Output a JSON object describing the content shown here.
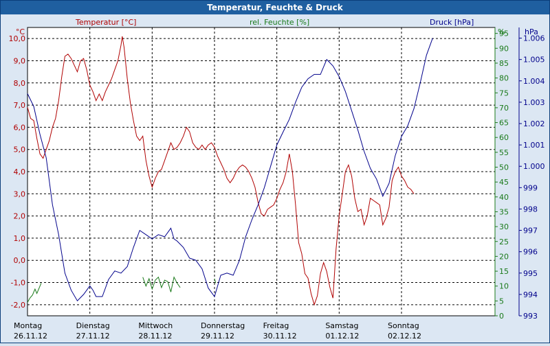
{
  "title": "Temperatur, Feuchte & Druck",
  "colors": {
    "temperature": "#b00000",
    "humidity": "#1a7a1a",
    "pressure": "#00008b",
    "grid": "#000000",
    "background": "#dce7f3",
    "titlebar": "#1f5fa0"
  },
  "chart_data": {
    "type": "line",
    "title": "Temperatur, Feuchte & Druck",
    "x_categories": [
      {
        "day": "Montag",
        "date": "26.11.12"
      },
      {
        "day": "Dienstag",
        "date": "27.11.12"
      },
      {
        "day": "Mittwoch",
        "date": "28.11.12"
      },
      {
        "day": "Donnerstag",
        "date": "29.11.12"
      },
      {
        "day": "Freitag",
        "date": "30.11.12"
      },
      {
        "day": "Samstag",
        "date": "01.12.12"
      },
      {
        "day": "Sonntag",
        "date": "02.12.12"
      }
    ],
    "x_range_days": [
      0,
      7.5
    ],
    "axes": {
      "temperature": {
        "unit_label": "°C",
        "legend": "Temperatur [°C]",
        "min": -2.5,
        "max": 10.5,
        "ticks": [
          "10,0",
          "9,0",
          "8,0",
          "7,0",
          "6,0",
          "5,0",
          "4,0",
          "3,0",
          "2,0",
          "1,0",
          "0,0",
          "-1,0",
          "-2,0"
        ]
      },
      "humidity": {
        "unit_label": "%",
        "legend": "rel. Feuchte [%]",
        "min": 0,
        "max": 97,
        "ticks": [
          "95",
          "90",
          "85",
          "80",
          "75",
          "70",
          "65",
          "60",
          "55",
          "50",
          "45",
          "40",
          "35",
          "30",
          "25",
          "20",
          "15",
          "10",
          "5",
          "0"
        ]
      },
      "pressure": {
        "unit_label": "hPa",
        "legend": "Druck [hPa]",
        "min": 993,
        "max": 1006.5,
        "ticks": [
          "1.006",
          "1.005",
          "1.004",
          "1.003",
          "1.002",
          "1.001",
          "1.000",
          "999",
          "998",
          "997",
          "996",
          "995",
          "994",
          "993"
        ]
      }
    },
    "series": [
      {
        "name": "Temperatur [°C]",
        "axis": "temperature",
        "points": [
          [
            0,
            6.9
          ],
          [
            0.05,
            6.4
          ],
          [
            0.1,
            6.3
          ],
          [
            0.15,
            5.5
          ],
          [
            0.2,
            4.8
          ],
          [
            0.25,
            4.6
          ],
          [
            0.3,
            5.0
          ],
          [
            0.35,
            5.4
          ],
          [
            0.4,
            6.0
          ],
          [
            0.45,
            6.4
          ],
          [
            0.5,
            7.2
          ],
          [
            0.55,
            8.3
          ],
          [
            0.6,
            9.2
          ],
          [
            0.65,
            9.3
          ],
          [
            0.7,
            9.1
          ],
          [
            0.75,
            8.8
          ],
          [
            0.8,
            8.5
          ],
          [
            0.85,
            9.0
          ],
          [
            0.9,
            9.1
          ],
          [
            0.95,
            8.6
          ],
          [
            1.0,
            7.9
          ],
          [
            1.05,
            7.6
          ],
          [
            1.1,
            7.2
          ],
          [
            1.15,
            7.5
          ],
          [
            1.2,
            7.2
          ],
          [
            1.25,
            7.6
          ],
          [
            1.3,
            7.9
          ],
          [
            1.35,
            8.2
          ],
          [
            1.4,
            8.6
          ],
          [
            1.45,
            9.0
          ],
          [
            1.5,
            9.7
          ],
          [
            1.52,
            10.1
          ],
          [
            1.55,
            9.6
          ],
          [
            1.6,
            8.2
          ],
          [
            1.65,
            7.1
          ],
          [
            1.7,
            6.3
          ],
          [
            1.75,
            5.6
          ],
          [
            1.8,
            5.4
          ],
          [
            1.85,
            5.6
          ],
          [
            1.9,
            4.5
          ],
          [
            1.95,
            3.8
          ],
          [
            2.0,
            3.3
          ],
          [
            2.05,
            3.7
          ],
          [
            2.1,
            4.0
          ],
          [
            2.15,
            4.1
          ],
          [
            2.2,
            4.5
          ],
          [
            2.25,
            4.9
          ],
          [
            2.3,
            5.3
          ],
          [
            2.35,
            5.0
          ],
          [
            2.4,
            5.1
          ],
          [
            2.45,
            5.3
          ],
          [
            2.5,
            5.6
          ],
          [
            2.55,
            6.0
          ],
          [
            2.6,
            5.8
          ],
          [
            2.65,
            5.3
          ],
          [
            2.7,
            5.1
          ],
          [
            2.75,
            5.0
          ],
          [
            2.8,
            5.2
          ],
          [
            2.85,
            5.0
          ],
          [
            2.9,
            5.2
          ],
          [
            2.95,
            5.3
          ],
          [
            3.0,
            5.1
          ],
          [
            3.05,
            4.7
          ],
          [
            3.1,
            4.4
          ],
          [
            3.15,
            4.1
          ],
          [
            3.2,
            3.7
          ],
          [
            3.25,
            3.5
          ],
          [
            3.3,
            3.7
          ],
          [
            3.35,
            4.0
          ],
          [
            3.4,
            4.2
          ],
          [
            3.45,
            4.3
          ],
          [
            3.5,
            4.2
          ],
          [
            3.55,
            4.0
          ],
          [
            3.6,
            3.7
          ],
          [
            3.65,
            3.3
          ],
          [
            3.7,
            2.6
          ],
          [
            3.75,
            2.1
          ],
          [
            3.8,
            2.0
          ],
          [
            3.85,
            2.3
          ],
          [
            3.9,
            2.4
          ],
          [
            3.95,
            2.5
          ],
          [
            4.0,
            2.8
          ],
          [
            4.05,
            3.2
          ],
          [
            4.1,
            3.5
          ],
          [
            4.15,
            4.0
          ],
          [
            4.2,
            4.8
          ],
          [
            4.25,
            4.0
          ],
          [
            4.3,
            2.5
          ],
          [
            4.35,
            0.8
          ],
          [
            4.4,
            0.3
          ],
          [
            4.45,
            -0.6
          ],
          [
            4.5,
            -0.8
          ],
          [
            4.55,
            -1.5
          ],
          [
            4.6,
            -2.0
          ],
          [
            4.65,
            -1.6
          ],
          [
            4.7,
            -0.6
          ],
          [
            4.75,
            -0.1
          ],
          [
            4.8,
            -0.5
          ],
          [
            4.85,
            -1.2
          ],
          [
            4.9,
            -1.7
          ],
          [
            4.95,
            0.5
          ],
          [
            5.0,
            2.0
          ],
          [
            5.05,
            3.0
          ],
          [
            5.1,
            4.0
          ],
          [
            5.15,
            4.3
          ],
          [
            5.2,
            3.8
          ],
          [
            5.25,
            2.8
          ],
          [
            5.3,
            2.2
          ],
          [
            5.35,
            2.3
          ],
          [
            5.4,
            1.6
          ],
          [
            5.45,
            2.0
          ],
          [
            5.5,
            2.8
          ],
          [
            5.55,
            2.7
          ],
          [
            5.6,
            2.6
          ],
          [
            5.65,
            2.5
          ],
          [
            5.7,
            1.6
          ],
          [
            5.75,
            1.9
          ],
          [
            5.8,
            2.4
          ],
          [
            5.85,
            3.6
          ],
          [
            5.9,
            4.0
          ],
          [
            5.95,
            4.2
          ],
          [
            6.0,
            3.8
          ],
          [
            6.05,
            3.6
          ],
          [
            6.1,
            3.3
          ],
          [
            6.15,
            3.2
          ],
          [
            6.2,
            3.0
          ]
        ]
      },
      {
        "name": "rel. Feuchte [%]",
        "axis": "humidity",
        "segments": [
          [
            [
              0.0,
              4.5
            ],
            [
              0.04,
              6.0
            ],
            [
              0.08,
              7.0
            ],
            [
              0.12,
              9.0
            ],
            [
              0.15,
              7.5
            ],
            [
              0.19,
              9.5
            ],
            [
              0.22,
              11.0
            ]
          ],
          [
            [
              1.85,
              13.0
            ],
            [
              1.9,
              10.0
            ],
            [
              1.95,
              12.5
            ],
            [
              2.0,
              9.0
            ],
            [
              2.05,
              12.0
            ],
            [
              2.1,
              13.0
            ],
            [
              2.15,
              9.5
            ],
            [
              2.2,
              12.0
            ],
            [
              2.25,
              11.5
            ],
            [
              2.3,
              8.0
            ],
            [
              2.35,
              13.0
            ],
            [
              2.4,
              11.0
            ],
            [
              2.45,
              9.5
            ]
          ],
          [
            [
              3.0,
              12.5
            ],
            [
              3.02,
              11.0
            ]
          ]
        ]
      },
      {
        "name": "Druck [hPa]",
        "axis": "pressure",
        "points": [
          [
            0,
            1003.4
          ],
          [
            0.1,
            1002.8
          ],
          [
            0.2,
            1001.5
          ],
          [
            0.3,
            1000.4
          ],
          [
            0.4,
            998.2
          ],
          [
            0.5,
            996.8
          ],
          [
            0.6,
            995.0
          ],
          [
            0.7,
            994.2
          ],
          [
            0.8,
            993.7
          ],
          [
            0.9,
            994.0
          ],
          [
            1.0,
            994.4
          ],
          [
            1.05,
            994.2
          ],
          [
            1.1,
            993.9
          ],
          [
            1.2,
            993.9
          ],
          [
            1.3,
            994.7
          ],
          [
            1.4,
            995.1
          ],
          [
            1.5,
            995.0
          ],
          [
            1.6,
            995.3
          ],
          [
            1.7,
            996.2
          ],
          [
            1.8,
            997.0
          ],
          [
            1.9,
            996.8
          ],
          [
            2.0,
            996.6
          ],
          [
            2.1,
            996.8
          ],
          [
            2.2,
            996.7
          ],
          [
            2.3,
            997.1
          ],
          [
            2.35,
            996.6
          ],
          [
            2.4,
            996.5
          ],
          [
            2.5,
            996.2
          ],
          [
            2.6,
            995.7
          ],
          [
            2.7,
            995.6
          ],
          [
            2.8,
            995.2
          ],
          [
            2.9,
            994.3
          ],
          [
            3.0,
            993.9
          ],
          [
            3.1,
            994.9
          ],
          [
            3.2,
            995.0
          ],
          [
            3.3,
            994.9
          ],
          [
            3.4,
            995.6
          ],
          [
            3.5,
            996.7
          ],
          [
            3.6,
            997.5
          ],
          [
            3.7,
            998.2
          ],
          [
            3.8,
            999.0
          ],
          [
            3.9,
            1000.0
          ],
          [
            4.0,
            1001.0
          ],
          [
            4.1,
            1001.6
          ],
          [
            4.2,
            1002.2
          ],
          [
            4.3,
            1003.0
          ],
          [
            4.4,
            1003.7
          ],
          [
            4.5,
            1004.1
          ],
          [
            4.6,
            1004.3
          ],
          [
            4.7,
            1004.3
          ],
          [
            4.8,
            1005.0
          ],
          [
            4.9,
            1004.7
          ],
          [
            5.0,
            1004.2
          ],
          [
            5.1,
            1003.5
          ],
          [
            5.2,
            1002.6
          ],
          [
            5.3,
            1001.7
          ],
          [
            5.4,
            1000.7
          ],
          [
            5.5,
            999.9
          ],
          [
            5.6,
            999.4
          ],
          [
            5.7,
            998.6
          ],
          [
            5.8,
            999.2
          ],
          [
            5.9,
            1000.5
          ],
          [
            6.0,
            1001.4
          ],
          [
            6.1,
            1001.9
          ],
          [
            6.2,
            1002.7
          ],
          [
            6.3,
            1003.9
          ],
          [
            6.4,
            1005.2
          ],
          [
            6.5,
            1006.0
          ]
        ]
      }
    ]
  }
}
